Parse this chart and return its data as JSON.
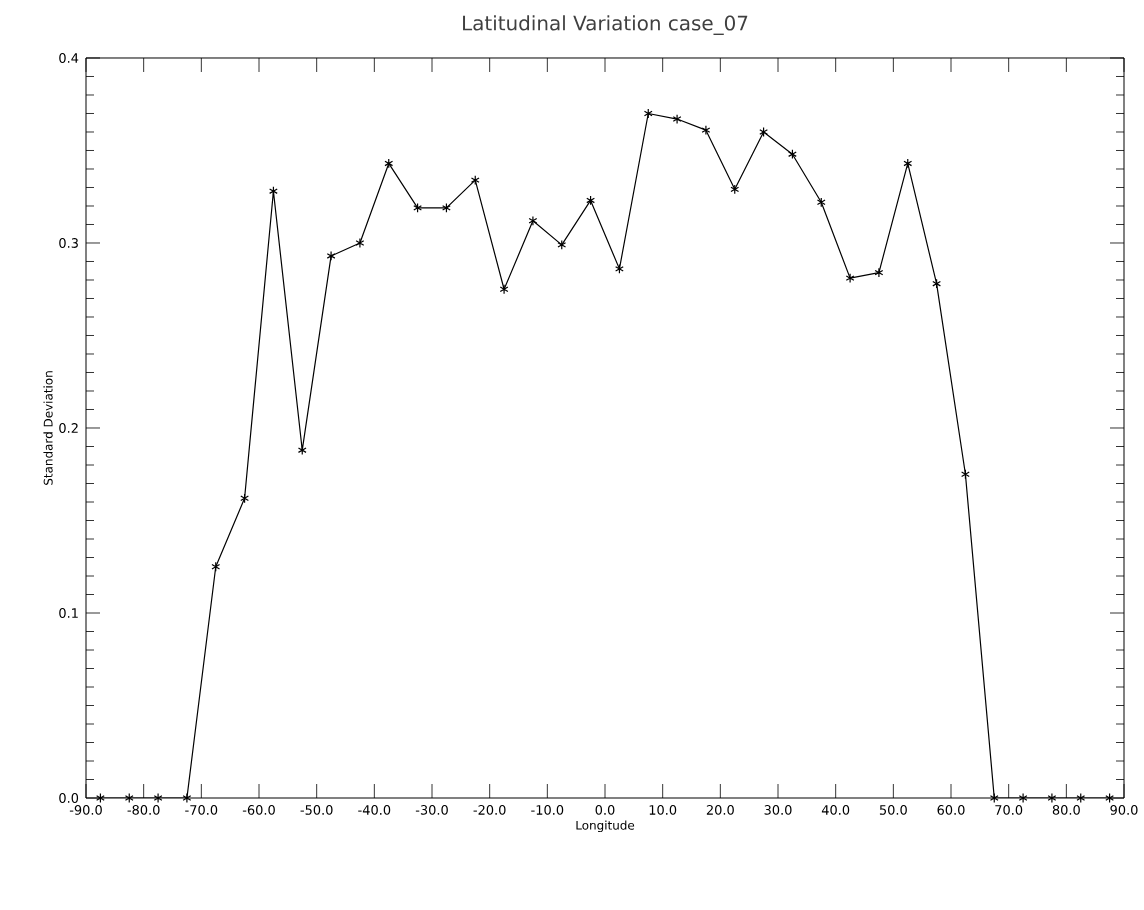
{
  "chart_data": {
    "type": "line",
    "title": "Latitudinal Variation  case_07",
    "xlabel": "Longitude",
    "ylabel": "Standard Deviation",
    "x": [
      -87.5,
      -82.5,
      -77.5,
      -72.5,
      -67.5,
      -62.5,
      -57.5,
      -52.5,
      -47.5,
      -42.5,
      -37.5,
      -32.5,
      -27.5,
      -22.5,
      -17.5,
      -12.5,
      -7.5,
      -2.5,
      2.5,
      7.5,
      12.5,
      17.5,
      22.5,
      27.5,
      32.5,
      37.5,
      42.5,
      47.5,
      52.5,
      57.5,
      62.5,
      67.5,
      72.5,
      77.5,
      82.5,
      87.5
    ],
    "series": [
      {
        "color": "#000000",
        "values": [
          0,
          0,
          0,
          0,
          0.125,
          0.162,
          0.328,
          0.188,
          0.293,
          0.3,
          0.343,
          0.319,
          0.319,
          0.334,
          0.275,
          0.312,
          0.299,
          0.323,
          0.286,
          0.37,
          0.367,
          0.361,
          0.329,
          0.36,
          0.348,
          0.322,
          0.281,
          0.284,
          0.343,
          0.278,
          0.175,
          0,
          0,
          0,
          0,
          0
        ]
      }
    ],
    "xlim": [
      -90,
      90
    ],
    "xticks": [
      {
        "value": -90,
        "label": "-90.0"
      },
      {
        "value": -80,
        "label": "-80.0"
      },
      {
        "value": -70,
        "label": "-70.0"
      },
      {
        "value": -60,
        "label": "-60.0"
      },
      {
        "value": -50,
        "label": "-50.0"
      },
      {
        "value": -40,
        "label": "-40.0"
      },
      {
        "value": -30,
        "label": "-30.0"
      },
      {
        "value": -20,
        "label": "-20.0"
      },
      {
        "value": -10,
        "label": "-10.0"
      },
      {
        "value": 0,
        "label": "0.0"
      },
      {
        "value": 10,
        "label": "10.0"
      },
      {
        "value": 20,
        "label": "20.0"
      },
      {
        "value": 30,
        "label": "30.0"
      },
      {
        "value": 40,
        "label": "40.0"
      },
      {
        "value": 50,
        "label": "50.0"
      },
      {
        "value": 60,
        "label": "60.0"
      },
      {
        "value": 70,
        "label": "70.0"
      },
      {
        "value": 80,
        "label": "80.0"
      },
      {
        "value": 90,
        "label": "90.0"
      }
    ],
    "ylim": [
      0,
      0.4
    ],
    "yticks": [
      {
        "value": 0,
        "label": "0.0"
      },
      {
        "value": 0.1,
        "label": "0.1"
      },
      {
        "value": 0.2,
        "label": "0.2"
      },
      {
        "value": 0.3,
        "label": "0.3"
      },
      {
        "value": 0.4,
        "label": "0.4"
      }
    ],
    "grid": false,
    "marker": "cross",
    "line_style": "solid"
  }
}
